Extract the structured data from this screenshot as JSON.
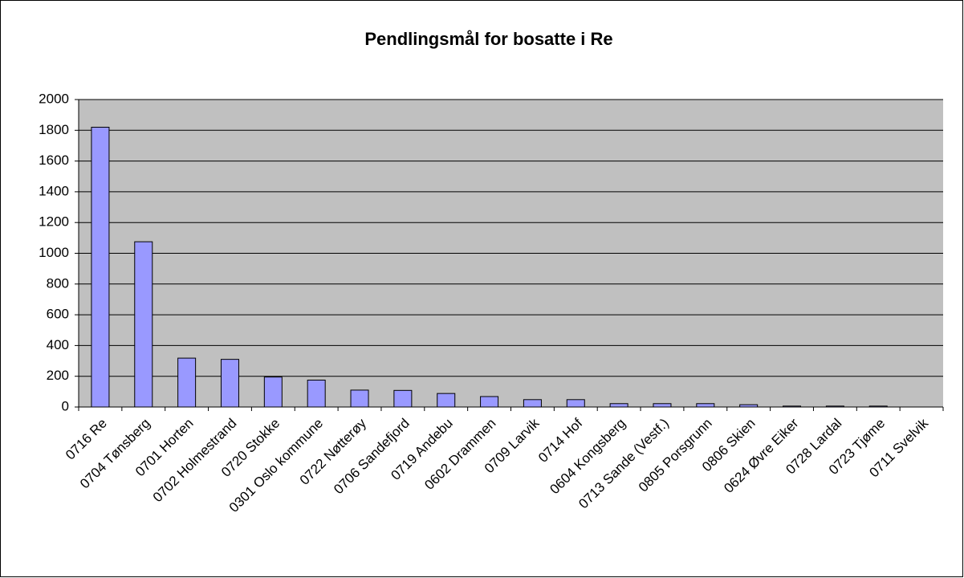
{
  "chart_data": {
    "type": "bar",
    "title": "Pendlingsmål for bosatte i Re",
    "categories": [
      "0716 Re",
      "0704 Tønsberg",
      "0701 Horten",
      "0702 Holmestrand",
      "0720 Stokke",
      "0301 Oslo kommune",
      "0722 Nøtterøy",
      "0706 Sandefjord",
      "0719 Andebu",
      "0602 Drammen",
      "0709 Larvik",
      "0714 Hof",
      "0604 Kongsberg",
      "0713 Sande (Vestf.)",
      "0805 Porsgrunn",
      "0806 Skien",
      "0624 Øvre Eiker",
      "0728 Lardal",
      "0723 Tjøme",
      "0711 Svelvik"
    ],
    "values": [
      1820,
      1075,
      318,
      310,
      195,
      175,
      110,
      108,
      88,
      68,
      48,
      48,
      22,
      22,
      22,
      15,
      6,
      6,
      6,
      0
    ],
    "color": "#9999ff",
    "ylim": [
      0,
      2000
    ],
    "yticks": [
      0,
      200,
      400,
      600,
      800,
      1000,
      1200,
      1400,
      1600,
      1800,
      2000
    ],
    "grid": true
  }
}
